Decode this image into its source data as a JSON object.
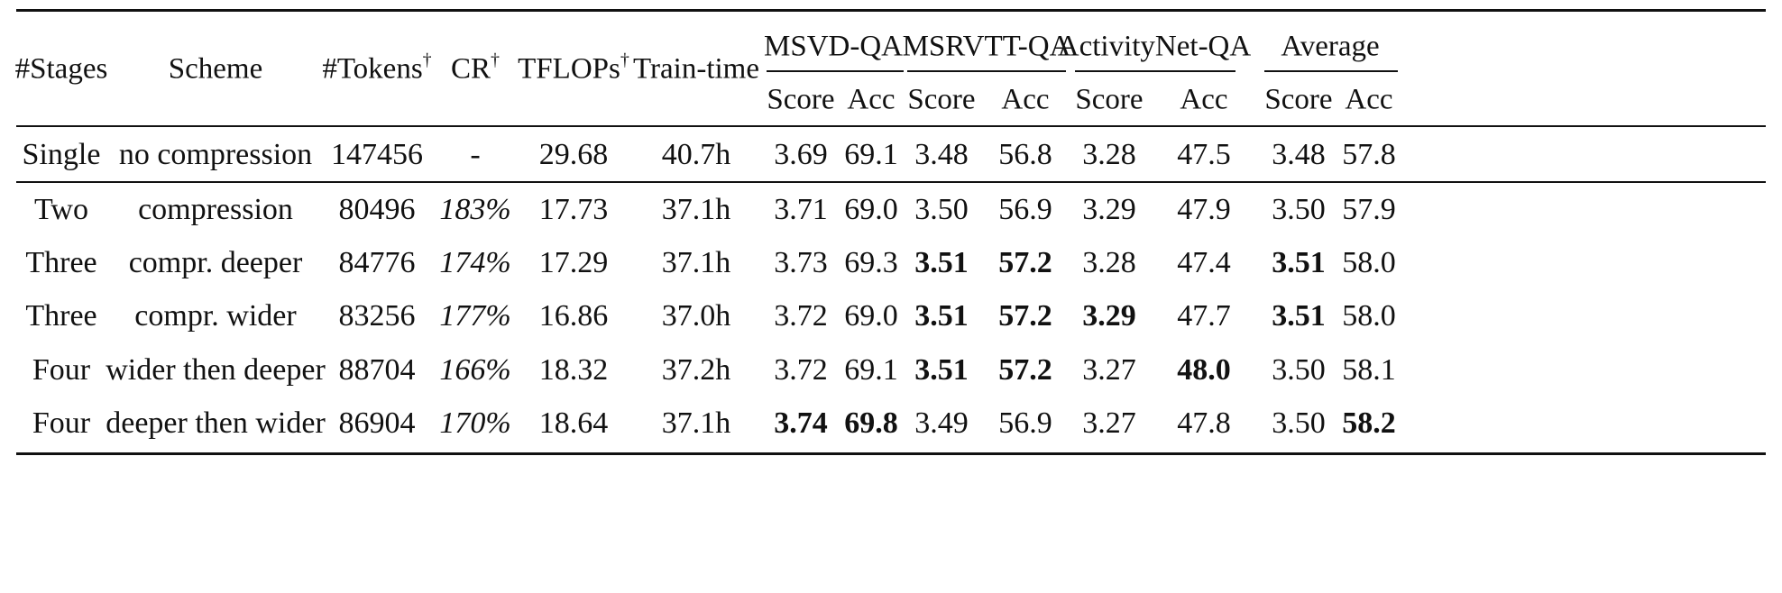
{
  "table": {
    "headers": {
      "stages": "#Stages",
      "scheme": "Scheme",
      "tokens": "#Tokens",
      "tokens_mark": "†",
      "cr": "CR",
      "cr_mark": "†",
      "tflops": "TFLOPs",
      "tflops_mark": "†",
      "train_time": "Train-time",
      "groups": [
        "MSVD-QA",
        "MSRVTT-QA",
        "ActivityNet-QA",
        "Average"
      ],
      "sub": [
        "Score",
        "Acc",
        "Score",
        "Acc",
        "Score",
        "Acc",
        "Score",
        "Acc"
      ]
    },
    "rows": [
      {
        "stages": "Single",
        "scheme": "no compression",
        "tokens": "147456",
        "cr": "-",
        "tflops": "29.68",
        "train_time": "40.7h",
        "values": [
          "3.69",
          "69.1",
          "3.48",
          "56.8",
          "3.28",
          "47.5",
          "3.48",
          "57.8"
        ],
        "bold": []
      },
      {
        "stages": "Two",
        "scheme": "compression",
        "tokens": "80496",
        "cr": "183%",
        "tflops": "17.73",
        "train_time": "37.1h",
        "values": [
          "3.71",
          "69.0",
          "3.50",
          "56.9",
          "3.29",
          "47.9",
          "3.50",
          "57.9"
        ],
        "bold": []
      },
      {
        "stages": "Three",
        "scheme": "compr. deeper",
        "tokens": "84776",
        "cr": "174%",
        "tflops": "17.29",
        "train_time": "37.1h",
        "values": [
          "3.73",
          "69.3",
          "3.51",
          "57.2",
          "3.28",
          "47.4",
          "3.51",
          "58.0"
        ],
        "bold": [
          2,
          3,
          6
        ]
      },
      {
        "stages": "Three",
        "scheme": "compr. wider",
        "tokens": "83256",
        "cr": "177%",
        "tflops": "16.86",
        "train_time": "37.0h",
        "values": [
          "3.72",
          "69.0",
          "3.51",
          "57.2",
          "3.29",
          "47.7",
          "3.51",
          "58.0"
        ],
        "bold": [
          2,
          3,
          4,
          6
        ]
      },
      {
        "stages": "Four",
        "scheme": "wider then deeper",
        "tokens": "88704",
        "cr": "166%",
        "tflops": "18.32",
        "train_time": "37.2h",
        "values": [
          "3.72",
          "69.1",
          "3.51",
          "57.2",
          "3.27",
          "48.0",
          "3.50",
          "58.1"
        ],
        "bold": [
          2,
          3,
          5
        ]
      },
      {
        "stages": "Four",
        "scheme": "deeper then wider",
        "tokens": "86904",
        "cr": "170%",
        "tflops": "18.64",
        "train_time": "37.1h",
        "values": [
          "3.74",
          "69.8",
          "3.49",
          "56.9",
          "3.27",
          "47.8",
          "3.50",
          "58.2"
        ],
        "bold": [
          0,
          1,
          7
        ]
      }
    ]
  }
}
